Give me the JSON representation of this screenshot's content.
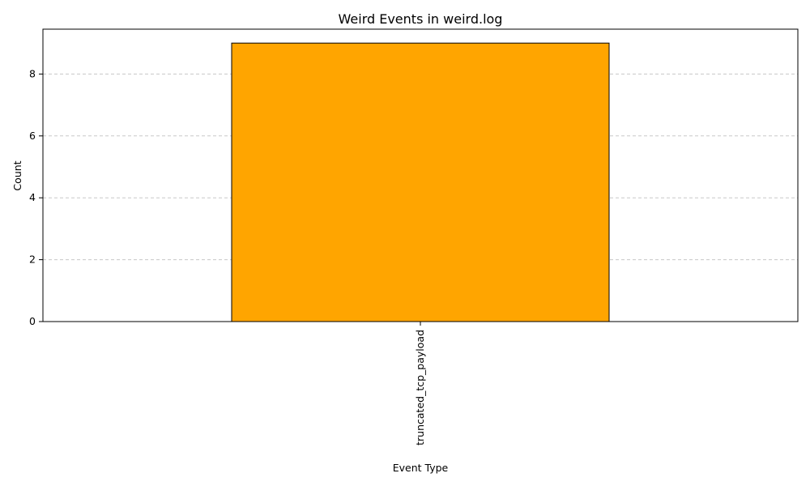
{
  "chart_data": {
    "type": "bar",
    "title": "Weird Events in weird.log",
    "xlabel": "Event Type",
    "ylabel": "Count",
    "categories": [
      "truncated_tcp_payload"
    ],
    "values": [
      9
    ],
    "ylim": [
      0,
      9.45
    ],
    "yticks": [
      0,
      2,
      4,
      6,
      8
    ],
    "grid": {
      "axis": "y",
      "visible": true,
      "style": "dashed",
      "color": "#c8c8c8"
    },
    "colors": {
      "bar_fill": "#ffa500",
      "bar_edge": "#000000"
    }
  }
}
